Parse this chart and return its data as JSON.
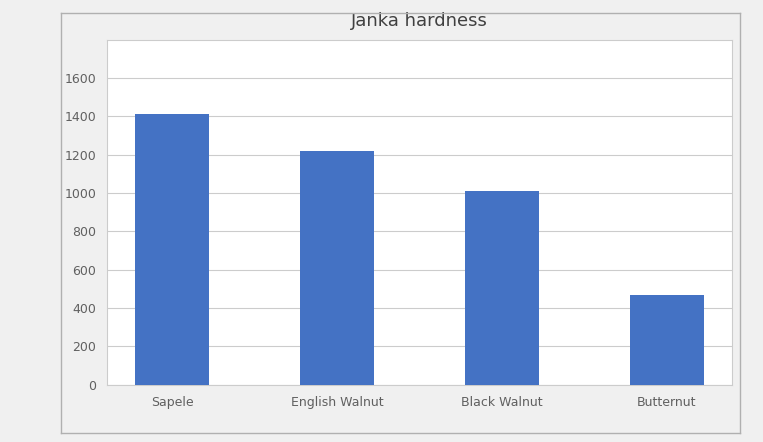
{
  "title": "Janka hardness",
  "categories": [
    "Sapele",
    "English Walnut",
    "Black Walnut",
    "Butternut"
  ],
  "values": [
    1410,
    1220,
    1010,
    470
  ],
  "bar_color": "#4472C4",
  "ylim": [
    0,
    1800
  ],
  "yticks": [
    0,
    200,
    400,
    600,
    800,
    1000,
    1200,
    1400,
    1600
  ],
  "legend_label": "Janka hardness",
  "title_fontsize": 13,
  "tick_fontsize": 9,
  "legend_fontsize": 9,
  "outer_bg_color": "#f0f0f0",
  "chart_bg_color": "#ffffff",
  "grid_color": "#cccccc",
  "bar_width": 0.45,
  "border_color": "#cccccc"
}
